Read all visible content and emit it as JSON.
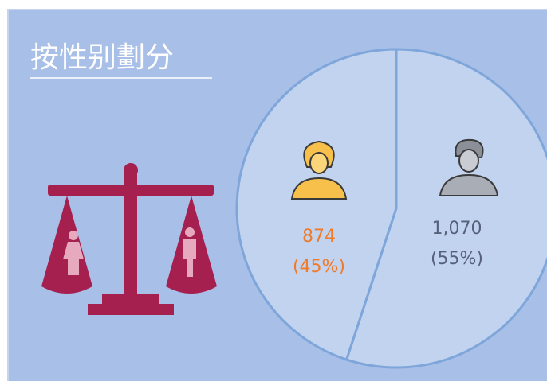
{
  "chart_data": {
    "type": "pie",
    "title": "按性别劃分",
    "values": [
      874,
      1070
    ],
    "value_labels": [
      "874",
      "1,070"
    ],
    "percent_labels": [
      "(45%)",
      "(55%)"
    ],
    "label_colors": [
      "#f07a28",
      "#56607a"
    ],
    "color": "#c1d3ef",
    "edge_color": "#7fa6da"
  }
}
